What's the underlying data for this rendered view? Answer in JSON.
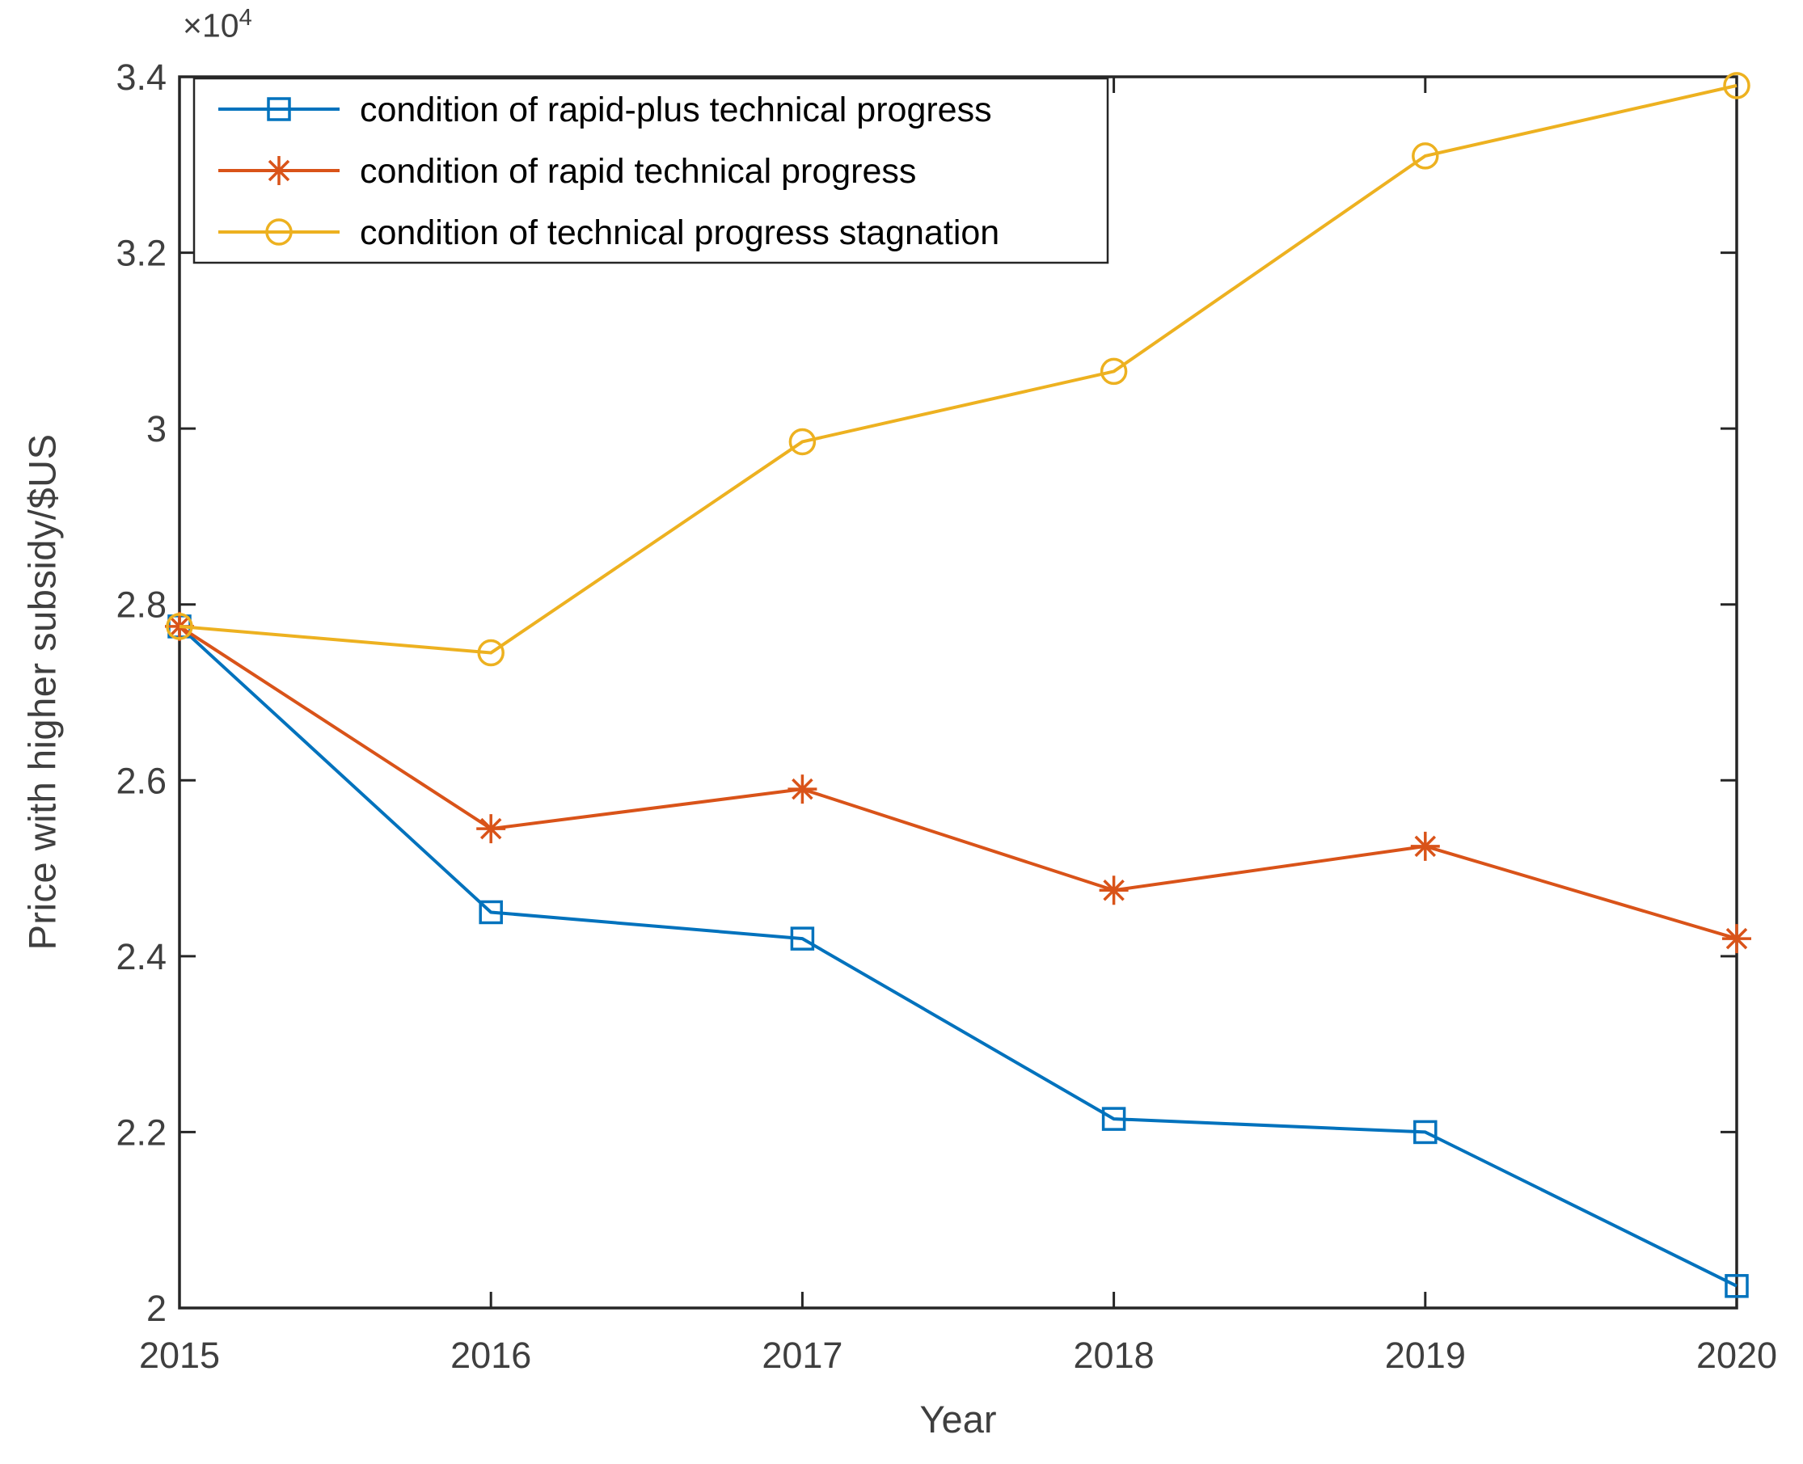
{
  "figure": {
    "ylabel": "Price with higher subsidy/$US",
    "xlabel": "Year",
    "y_multiplier_base": "×10",
    "y_multiplier_exp": "4"
  },
  "chart_data": {
    "type": "line",
    "title": "",
    "xlabel": "Year",
    "ylabel": "Price with higher subsidy/$US",
    "y_unit_multiplier_label": "×10^4",
    "x": [
      2015,
      2016,
      2017,
      2018,
      2019,
      2020
    ],
    "x_tick_labels": [
      "2015",
      "2016",
      "2017",
      "2018",
      "2019",
      "2020"
    ],
    "xlim": [
      2015,
      2020
    ],
    "ylim": [
      20000,
      34000
    ],
    "y_tick_values": [
      20000,
      22000,
      24000,
      26000,
      28000,
      30000,
      32000,
      34000
    ],
    "y_tick_labels": [
      "2",
      "2.2",
      "2.4",
      "2.6",
      "2.8",
      "3",
      "3.2",
      "3.4"
    ],
    "grid": false,
    "legend_position": "northwest",
    "axis_color": "#262626",
    "tick_label_color": "#3f3f3f",
    "series": [
      {
        "name": "condition of rapid-plus technical progress",
        "color": "#0072BD",
        "marker": "square",
        "values": [
          27750,
          24500,
          24200,
          22150,
          22000,
          20250
        ]
      },
      {
        "name": "condition of rapid technical progress",
        "color": "#D95319",
        "marker": "asterisk",
        "values": [
          27750,
          25450,
          25900,
          24750,
          25250,
          24200
        ]
      },
      {
        "name": "condition of technical progress stagnation",
        "color": "#EDB120",
        "marker": "circle",
        "values": [
          27750,
          27450,
          29850,
          30650,
          33100,
          33900
        ]
      }
    ]
  }
}
